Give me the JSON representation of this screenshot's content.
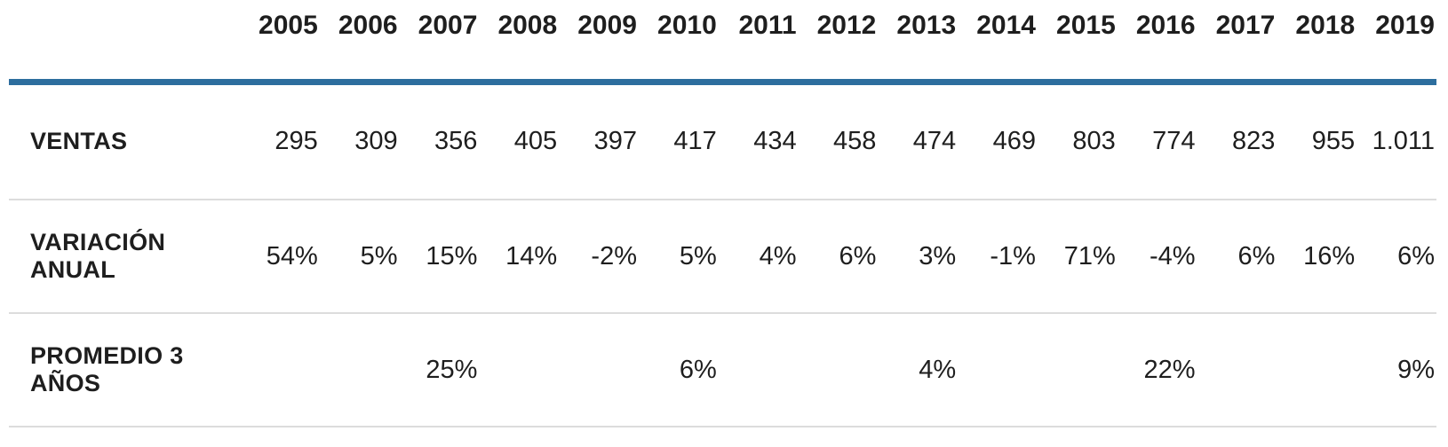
{
  "colors": {
    "header_rule": "#2d6e9e",
    "row_divider": "#dcdcdc",
    "text": "#1e1e1e",
    "background": "#ffffff"
  },
  "chart_data": {
    "type": "table",
    "title": "",
    "corner_label": "",
    "categories": [
      "2005",
      "2006",
      "2007",
      "2008",
      "2009",
      "2010",
      "2011",
      "2012",
      "2013",
      "2014",
      "2015",
      "2016",
      "2017",
      "2018",
      "2019"
    ],
    "series": [
      {
        "name": "VENTAS",
        "values": [
          "295",
          "309",
          "356",
          "405",
          "397",
          "417",
          "434",
          "458",
          "474",
          "469",
          "803",
          "774",
          "823",
          "955",
          "1.011"
        ]
      },
      {
        "name": "VARIACIÓN ANUAL",
        "values": [
          "54%",
          "5%",
          "15%",
          "14%",
          "-2%",
          "5%",
          "4%",
          "6%",
          "3%",
          "-1%",
          "71%",
          "-4%",
          "6%",
          "16%",
          "6%"
        ]
      },
      {
        "name": "PROMEDIO 3 AÑOS",
        "values": [
          "",
          "",
          "25%",
          "",
          "",
          "6%",
          "",
          "",
          "4%",
          "",
          "",
          "22%",
          "",
          "",
          "9%"
        ]
      }
    ]
  }
}
